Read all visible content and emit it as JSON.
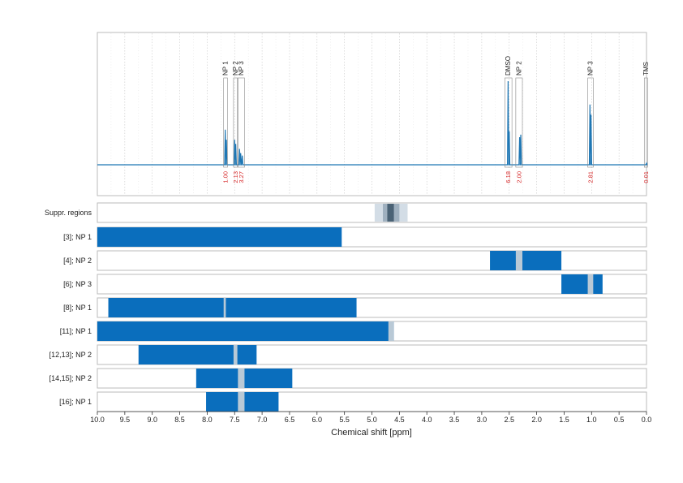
{
  "chart_data": {
    "type": "nmr_spectrum_with_range_bars",
    "xlabel": "Chemical shift [ppm]",
    "xlim": [
      10.0,
      0.0
    ],
    "x_ticks": [
      "10.0",
      "9.5",
      "9.0",
      "8.5",
      "8.0",
      "7.5",
      "7.0",
      "6.5",
      "6.0",
      "5.5",
      "5.0",
      "4.5",
      "4.0",
      "3.5",
      "3.0",
      "2.5",
      "2.0",
      "1.5",
      "1.0",
      "0.5",
      "0.0"
    ],
    "grid": true,
    "colors": {
      "spectrum": "#1f77b4",
      "bar": "#0a6ebd",
      "excluded": "#b9c9d6",
      "integral_text": "#d62728",
      "suppr_light": "#d3dde6",
      "suppr_dark": "#4a6275"
    },
    "peaks": [
      {
        "label": "NP 1",
        "ppm_from": 7.7,
        "ppm_to": 7.63,
        "integral": "1.00"
      },
      {
        "label": "NP 2",
        "ppm_from": 7.52,
        "ppm_to": 7.45,
        "integral": "2.13"
      },
      {
        "label": "NP 3",
        "ppm_from": 7.44,
        "ppm_to": 7.32,
        "integral": "3.27"
      },
      {
        "label": "DMSO",
        "ppm_from": 2.58,
        "ppm_to": 2.45,
        "integral": "6.18"
      },
      {
        "label": "NP 2",
        "ppm_from": 2.38,
        "ppm_to": 2.26,
        "integral": "2.00"
      },
      {
        "label": "NP 3",
        "ppm_from": 1.07,
        "ppm_to": 0.97,
        "integral": "2.81"
      },
      {
        "label": "TMS",
        "ppm_from": 0.04,
        "ppm_to": -0.02,
        "integral": "0.01"
      }
    ],
    "spectrum_signals": [
      {
        "ppm": 7.67,
        "height": 0.42
      },
      {
        "ppm": 7.65,
        "height": 0.3
      },
      {
        "ppm": 7.5,
        "height": 0.3
      },
      {
        "ppm": 7.48,
        "height": 0.25
      },
      {
        "ppm": 7.41,
        "height": 0.19
      },
      {
        "ppm": 7.39,
        "height": 0.14
      },
      {
        "ppm": 7.36,
        "height": 0.11
      },
      {
        "ppm": 2.52,
        "height": 1.0
      },
      {
        "ppm": 2.5,
        "height": 0.4
      },
      {
        "ppm": 2.31,
        "height": 0.33
      },
      {
        "ppm": 2.29,
        "height": 0.36
      },
      {
        "ppm": 1.03,
        "height": 0.72
      },
      {
        "ppm": 1.01,
        "height": 0.6
      },
      {
        "ppm": 0.0,
        "height": 0.02
      }
    ],
    "suppressed_regions": {
      "label": "Suppr. regions",
      "light": [
        4.95,
        4.35
      ],
      "mid": [
        4.8,
        4.5
      ],
      "dark": [
        4.72,
        4.6
      ]
    },
    "rows": [
      {
        "label": "[3]; NP 1",
        "from": 10.0,
        "to": 5.55,
        "excluded": []
      },
      {
        "label": "[4]; NP 2",
        "from": 2.85,
        "to": 1.55,
        "excluded": [
          [
            2.38,
            2.26
          ]
        ]
      },
      {
        "label": "[6]; NP 3",
        "from": 1.55,
        "to": 0.8,
        "excluded": [
          [
            1.07,
            0.97
          ]
        ]
      },
      {
        "label": "[8]; NP 1",
        "from": 9.8,
        "to": 5.28,
        "excluded": [
          [
            7.7,
            7.66
          ]
        ]
      },
      {
        "label": "[11]; NP 1",
        "from": 10.0,
        "to": 4.6,
        "excluded": [
          [
            4.7,
            4.6
          ]
        ]
      },
      {
        "label": "[12,13]; NP 2",
        "from": 9.25,
        "to": 7.1,
        "excluded": [
          [
            7.52,
            7.45
          ]
        ]
      },
      {
        "label": "[14,15]; NP 2",
        "from": 8.2,
        "to": 6.45,
        "excluded": [
          [
            7.44,
            7.32
          ]
        ]
      },
      {
        "label": "[16]; NP 1",
        "from": 8.02,
        "to": 6.7,
        "excluded": [
          [
            7.44,
            7.32
          ]
        ]
      }
    ]
  }
}
